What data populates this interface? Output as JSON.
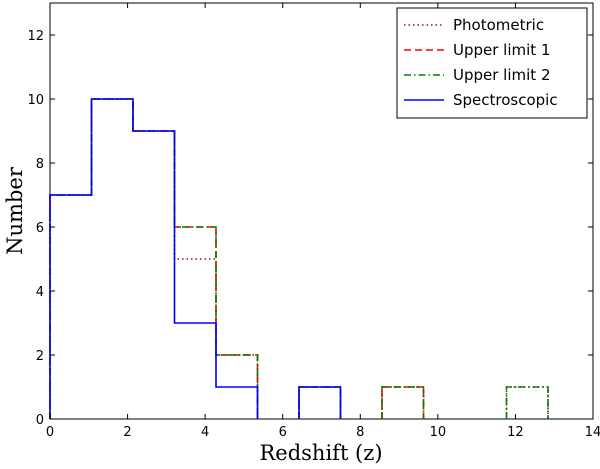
{
  "chart_data": {
    "type": "step",
    "title": "",
    "xlabel": "Redshift (z)",
    "ylabel": "Number",
    "xlim": [
      0,
      14
    ],
    "ylim": [
      0,
      13
    ],
    "xticks": [
      0,
      2,
      4,
      6,
      8,
      10,
      12,
      14
    ],
    "yticks": [
      0,
      2,
      4,
      6,
      8,
      10,
      12
    ],
    "grid": false,
    "legend_position": "top-right",
    "bin_edges": [
      0,
      1.07,
      2.14,
      3.21,
      4.28,
      5.35,
      6.42,
      7.49,
      8.56,
      9.63,
      10.7,
      11.77,
      12.84
    ],
    "series": [
      {
        "name": "Photometric",
        "color": "#8b1a1a",
        "style": "dotted",
        "values": [
          7,
          10,
          9,
          5,
          2,
          0,
          1,
          0,
          1,
          0,
          0,
          1
        ]
      },
      {
        "name": "Upper limit 1",
        "color": "#ff0000",
        "style": "dashed",
        "values": [
          7,
          10,
          9,
          6,
          2,
          0,
          1,
          0,
          1,
          0,
          0,
          0
        ]
      },
      {
        "name": "Upper limit 2",
        "color": "#008000",
        "style": "dashdot",
        "values": [
          7,
          10,
          9,
          6,
          2,
          0,
          1,
          0,
          1,
          0,
          0,
          1
        ]
      },
      {
        "name": "Spectroscopic",
        "color": "#0000ff",
        "style": "solid",
        "values": [
          7,
          10,
          9,
          3,
          1,
          0,
          1,
          0,
          0,
          0,
          0,
          0
        ]
      }
    ]
  }
}
